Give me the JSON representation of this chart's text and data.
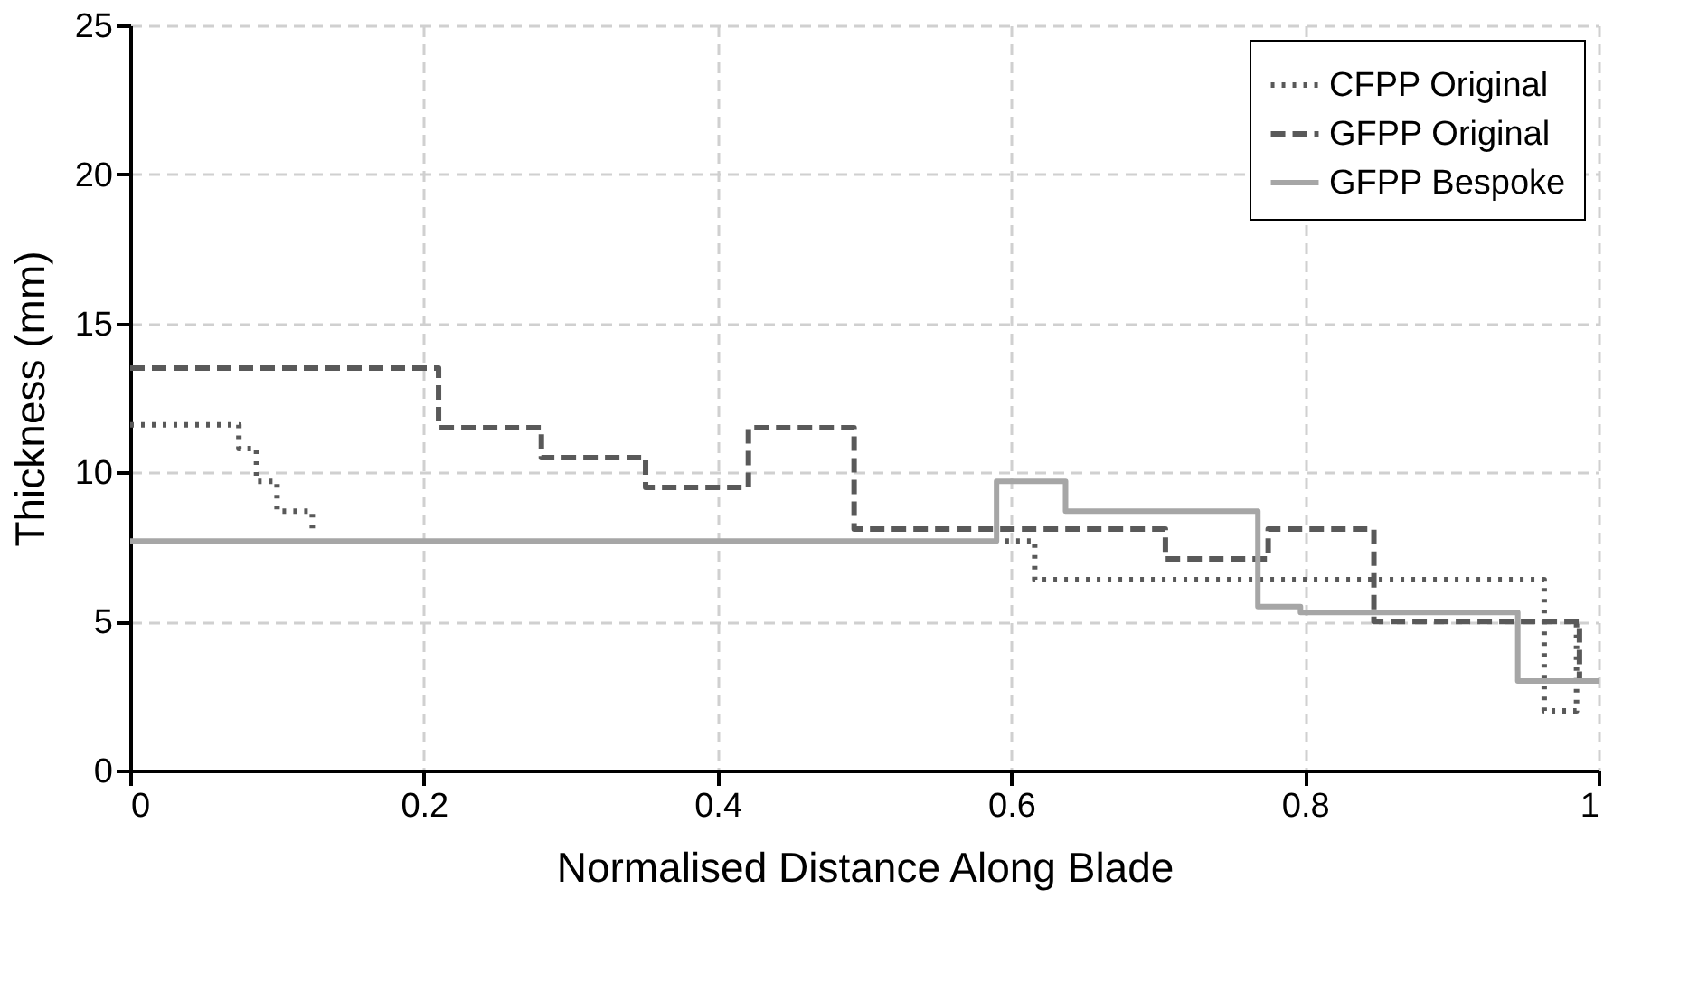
{
  "chart_data": {
    "type": "step",
    "xlabel": "Normalised Distance Along Blade",
    "ylabel": "Thickness (mm)",
    "xlim": [
      0,
      1
    ],
    "xticks": [
      0,
      0.2,
      0.4,
      0.6,
      0.8,
      1
    ],
    "ylim": [
      0,
      25
    ],
    "yticks": [
      0,
      5,
      10,
      15,
      20,
      25
    ],
    "grid": true,
    "legend": "top right",
    "marker": "none",
    "series": [
      {
        "name": "CFPP Original",
        "color": "#595959",
        "line_style": "dotted",
        "x": [
          0,
          0.074,
          0.086,
          0.1,
          0.124,
          0.125,
          0.3,
          0.596,
          0.616,
          0.963,
          0.985,
          0.986
        ],
        "values": [
          11.6,
          10.8,
          9.7,
          8.7,
          8.1,
          8.1,
          null,
          7.7,
          6.4,
          2.0,
          5.0,
          5.0
        ]
      },
      {
        "name": "GFPP Original",
        "color": "#595959",
        "line_style": "dashed",
        "x": [
          0,
          0.21,
          0.28,
          0.351,
          0.421,
          0.493,
          0.705,
          0.775,
          0.847,
          0.987,
          1
        ],
        "values": [
          13.5,
          11.5,
          10.5,
          9.5,
          11.5,
          8.1,
          7.1,
          8.1,
          5.0,
          3.0,
          3.0
        ]
      },
      {
        "name": "GFPP Bespoke",
        "color": "#a6a6a6",
        "line_style": "solid",
        "x": [
          0,
          0.59,
          0.637,
          0.768,
          0.797,
          0.945,
          1
        ],
        "values": [
          7.7,
          9.7,
          8.7,
          5.5,
          5.3,
          3.0,
          3.0
        ]
      }
    ]
  }
}
